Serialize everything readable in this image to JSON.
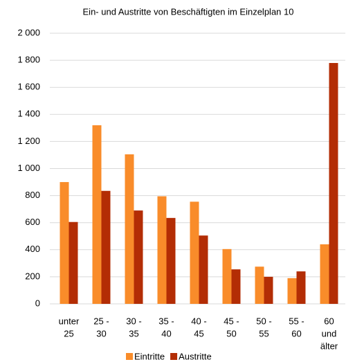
{
  "chart_data": {
    "type": "bar",
    "title": "Ein- und Austritte von Beschäftigten im Einzelplan 10",
    "categories": [
      [
        "unter",
        "25"
      ],
      [
        "25 -",
        "30"
      ],
      [
        "30 -",
        "35"
      ],
      [
        "35 -",
        "40"
      ],
      [
        "40 -",
        "45"
      ],
      [
        "45 -",
        "50"
      ],
      [
        "50 -",
        "55"
      ],
      [
        "55 -",
        "60"
      ],
      [
        "60",
        "und",
        "älter"
      ]
    ],
    "series": [
      {
        "name": "Eintritte",
        "color": "#f98c2a",
        "values": [
          900,
          1320,
          1105,
          795,
          755,
          405,
          275,
          190,
          440
        ]
      },
      {
        "name": "Austritte",
        "color": "#b32d05",
        "values": [
          605,
          835,
          690,
          635,
          505,
          255,
          200,
          240,
          1780
        ]
      }
    ],
    "ylim": [
      0,
      2000
    ],
    "yticks": [
      0,
      200,
      400,
      600,
      800,
      {
        "value": 1000,
        "label": "1 000"
      },
      {
        "value": 1200,
        "label": "1 200"
      },
      {
        "value": 1400,
        "label": "1 400"
      },
      {
        "value": 1600,
        "label": "1 600"
      },
      {
        "value": 1800,
        "label": "1 800"
      },
      {
        "value": 2000,
        "label": "2 000"
      }
    ],
    "grid": true,
    "legend": "bottom"
  }
}
